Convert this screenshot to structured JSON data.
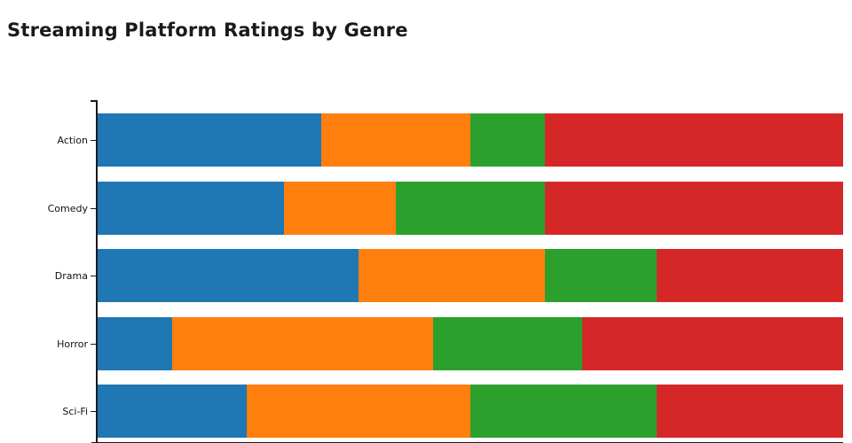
{
  "title": "Streaming Platform Ratings by Genre",
  "axis": {
    "color": "#1a1a1a",
    "label_color": "#111111",
    "x_axis_labels_visible": false,
    "legend_visible": false
  },
  "chart_data": {
    "type": "bar",
    "subtype": "horizontal-stacked",
    "title": "Streaming Platform Ratings by Genre",
    "categories": [
      "Action",
      "Comedy",
      "Drama",
      "Horror",
      "Sci-Fi"
    ],
    "series": [
      {
        "name": "segment-blue",
        "color": "#1f77b4",
        "values": [
          30,
          25,
          35,
          10,
          20
        ]
      },
      {
        "name": "segment-orange",
        "color": "#ff7f0e",
        "values": [
          20,
          15,
          25,
          35,
          30
        ]
      },
      {
        "name": "segment-green",
        "color": "#2ca02c",
        "values": [
          10,
          20,
          15,
          20,
          25
        ]
      },
      {
        "name": "segment-red",
        "color": "#d62728",
        "values": [
          40,
          40,
          25,
          35,
          25
        ]
      }
    ],
    "values_unit": "percent of total bar width (x-axis scale cropped out of view)",
    "xlabel": "",
    "ylabel": "",
    "xlim": [
      0,
      100
    ],
    "grid": false,
    "legend_position": "none (not visible; figure cropped at bottom)"
  }
}
